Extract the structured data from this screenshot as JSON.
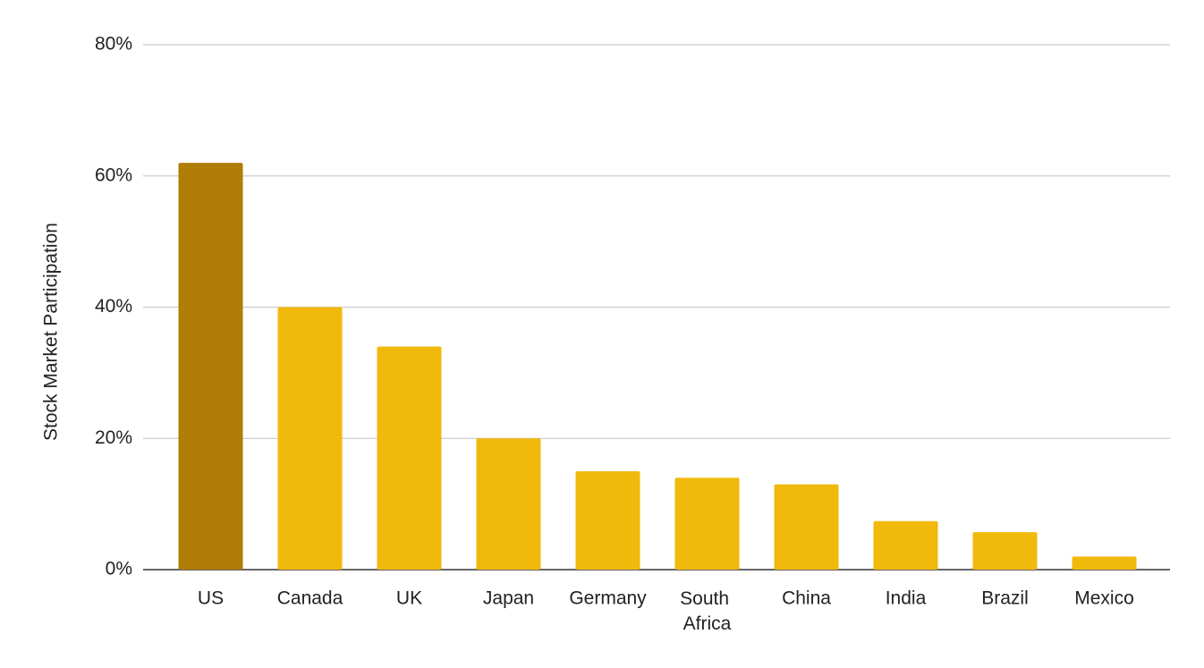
{
  "chart_data": {
    "type": "bar",
    "y_label": "Stock Market Participation",
    "categories": [
      "US",
      "Canada",
      "UK",
      "Japan",
      "Germany",
      "South Africa",
      "China",
      "India",
      "Brazil",
      "Mexico"
    ],
    "values": [
      62,
      40,
      34,
      20,
      15,
      14,
      13,
      7.4,
      5.7,
      2
    ],
    "colors": [
      "#b07d07",
      "#f0b90b",
      "#f0b90b",
      "#f0b90b",
      "#f0b90b",
      "#f0b90b",
      "#f0b90b",
      "#f0b90b",
      "#f0b90b",
      "#f0b90b"
    ],
    "ylim": [
      0,
      80
    ],
    "yticks": [
      {
        "value": 0,
        "label": "0%"
      },
      {
        "value": 20,
        "label": "20%"
      },
      {
        "value": 40,
        "label": "40%"
      },
      {
        "value": 60,
        "label": "60%"
      },
      {
        "value": 80,
        "label": "80%"
      }
    ],
    "grid": true
  }
}
